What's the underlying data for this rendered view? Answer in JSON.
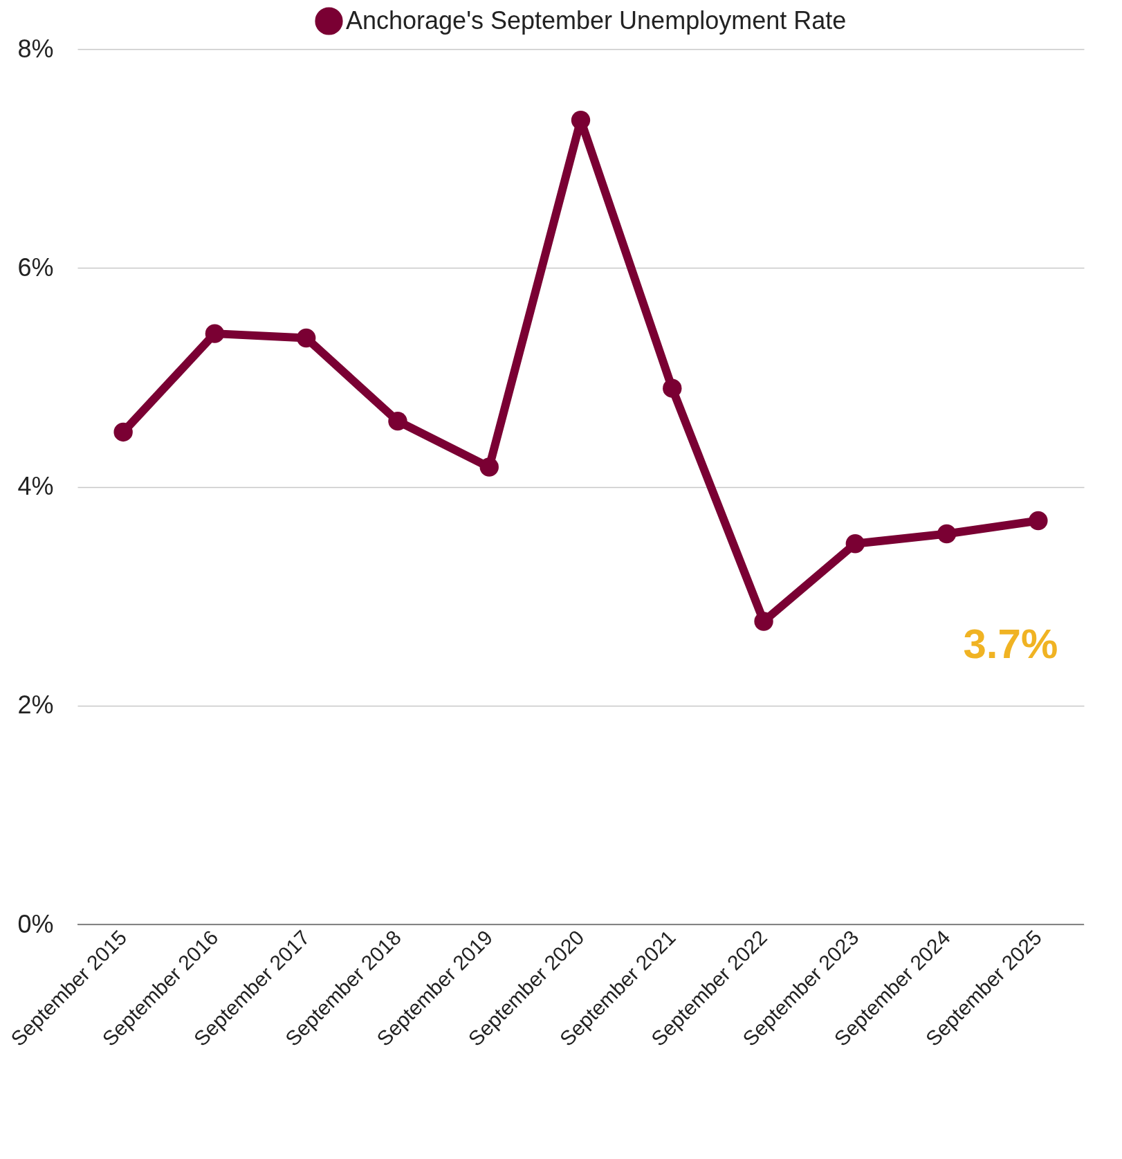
{
  "chart_data": {
    "type": "line",
    "categories": [
      "September 2015",
      "September 2016",
      "September 2017",
      "September 2018",
      "September 2019",
      "September 2020",
      "September 2021",
      "September 2022",
      "September 2023",
      "September 2024",
      "September 2025"
    ],
    "series": [
      {
        "name": "Anchorage's September Unemployment Rate",
        "color": "#7a0033",
        "values": [
          4.5,
          5.4,
          5.36,
          4.6,
          4.18,
          7.35,
          4.9,
          2.77,
          3.48,
          3.57,
          3.69
        ],
        "value_labels": [
          null,
          null,
          null,
          null,
          null,
          null,
          null,
          null,
          null,
          null,
          "3.7%"
        ]
      }
    ],
    "ylim": [
      0,
      8
    ],
    "yticks": [
      {
        "value": 0,
        "label": "0%"
      },
      {
        "value": 2,
        "label": "2%"
      },
      {
        "value": 4,
        "label": "4%"
      },
      {
        "value": 6,
        "label": "6%"
      },
      {
        "value": 8,
        "label": "8%"
      }
    ],
    "grid": "y",
    "legend": "top",
    "marker": "circle",
    "line_style": "solid"
  }
}
